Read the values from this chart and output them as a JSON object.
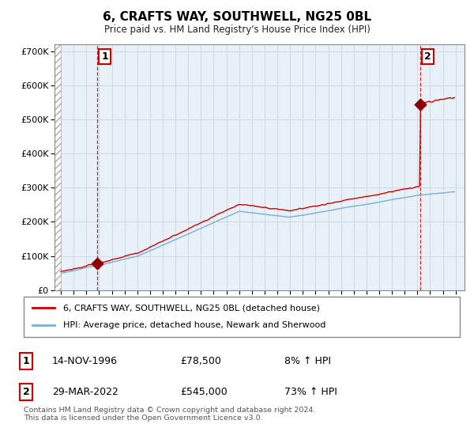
{
  "title": "6, CRAFTS WAY, SOUTHWELL, NG25 0BL",
  "subtitle": "Price paid vs. HM Land Registry's House Price Index (HPI)",
  "ylim": [
    0,
    720000
  ],
  "yticks": [
    0,
    100000,
    200000,
    300000,
    400000,
    500000,
    600000,
    700000
  ],
  "ytick_labels": [
    "£0",
    "£100K",
    "£200K",
    "£300K",
    "£400K",
    "£500K",
    "£600K",
    "£700K"
  ],
  "xlim_start": 1993.5,
  "xlim_end": 2025.7,
  "hatch_end": 1994.0,
  "purchase1_date": 1996.87,
  "purchase1_price": 78500,
  "purchase1_label": "1",
  "purchase1_date_str": "14-NOV-1996",
  "purchase1_price_str": "£78,500",
  "purchase1_hpi_str": "8% ↑ HPI",
  "purchase2_date": 2022.24,
  "purchase2_price": 545000,
  "purchase2_label": "2",
  "purchase2_date_str": "29-MAR-2022",
  "purchase2_price_str": "£545,000",
  "purchase2_hpi_str": "73% ↑ HPI",
  "line1_color": "#cc0000",
  "line2_color": "#7ab0d4",
  "marker_color": "#8b0000",
  "grid_color": "#d0d8e0",
  "plot_bg_color": "#e8f0f8",
  "legend1_label": "6, CRAFTS WAY, SOUTHWELL, NG25 0BL (detached house)",
  "legend2_label": "HPI: Average price, detached house, Newark and Sherwood",
  "footnote": "Contains HM Land Registry data © Crown copyright and database right 2024.\nThis data is licensed under the Open Government Licence v3.0.",
  "background_color": "#ffffff"
}
